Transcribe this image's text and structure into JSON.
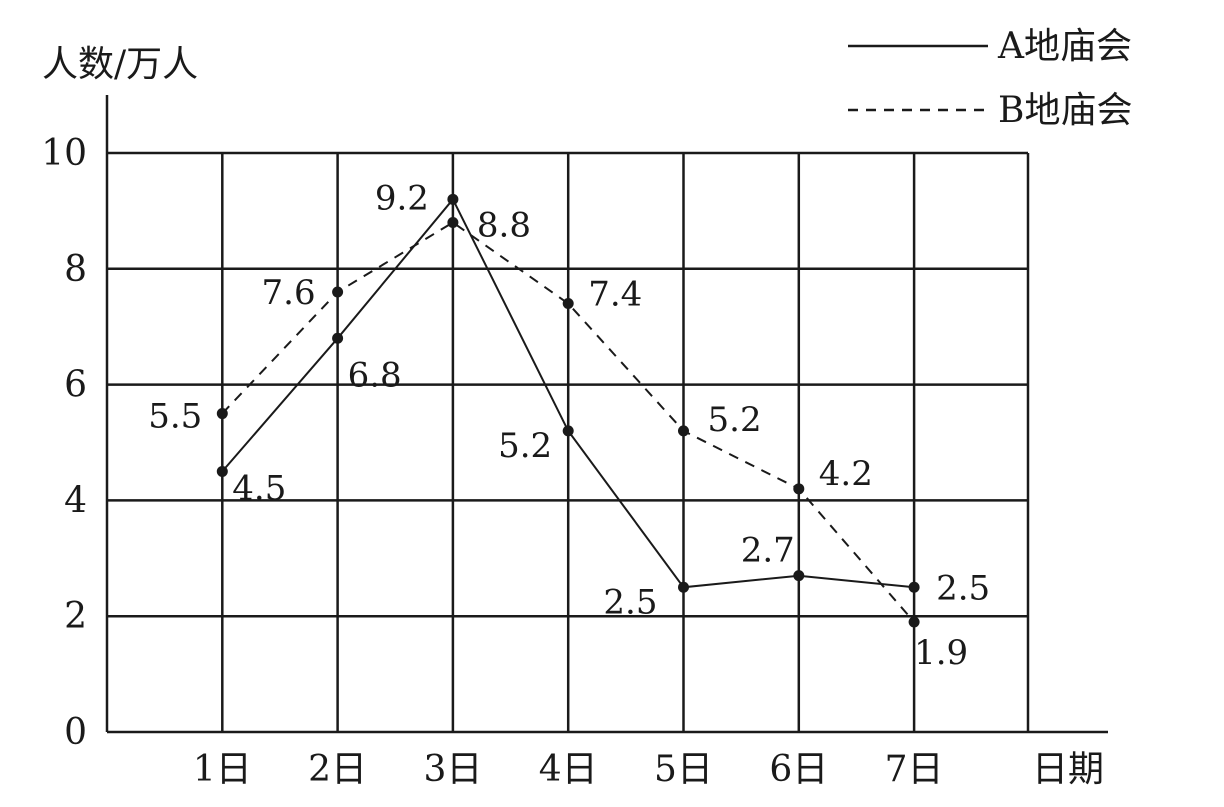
{
  "chart_data": {
    "type": "line",
    "ylabel": "人数/万人",
    "xlabel": "日期",
    "categories": [
      "1日",
      "2日",
      "3日",
      "4日",
      "5日",
      "6日",
      "7日"
    ],
    "yticks": [
      "0",
      "2",
      "4",
      "6",
      "8",
      "10"
    ],
    "ylim": [
      0,
      10
    ],
    "grid": true,
    "legend_position": "top-right",
    "series": [
      {
        "name": "A地庙会",
        "line_style": "solid",
        "values": [
          4.5,
          6.8,
          9.2,
          5.2,
          2.5,
          2.7,
          2.5
        ],
        "labels": [
          "4.5",
          "6.8",
          "9.2",
          "5.2",
          "2.5",
          "2.7",
          "2.5"
        ]
      },
      {
        "name": "B地庙会",
        "line_style": "dashed",
        "values": [
          5.5,
          7.6,
          8.8,
          7.4,
          5.2,
          4.2,
          1.9
        ],
        "labels": [
          "5.5",
          "7.6",
          "8.8",
          "7.4",
          "5.2",
          "4.2",
          "1.9"
        ]
      }
    ],
    "colors": {
      "line": "#1a1a1a",
      "grid": "#1a1a1a",
      "background": "#ffffff"
    }
  }
}
